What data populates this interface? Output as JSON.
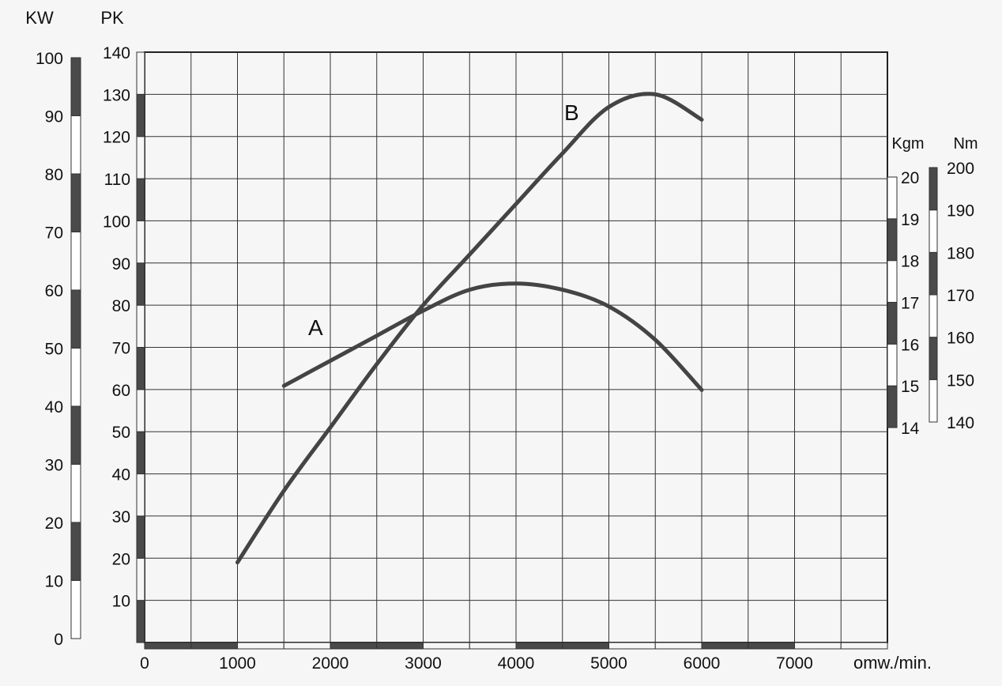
{
  "chart_data": {
    "type": "line",
    "x_axis": {
      "ticks": [
        "0",
        "1000",
        "2000",
        "3000",
        "4000",
        "5000",
        "6000",
        "7000"
      ],
      "unit_label": "omw./min.",
      "range": [
        0,
        8000
      ]
    },
    "axes": {
      "pk": {
        "label": "PK",
        "ticks": [
          "140",
          "130",
          "120",
          "110",
          "100",
          "90",
          "80",
          "70",
          "60",
          "50",
          "40",
          "30",
          "20",
          "10"
        ],
        "range": [
          0,
          140
        ]
      },
      "kw": {
        "label": "KW",
        "ticks": [
          "100",
          "90",
          "80",
          "70",
          "60",
          "50",
          "40",
          "30",
          "20",
          "10",
          "0"
        ],
        "range": [
          0,
          100
        ]
      },
      "kgm": {
        "label": "Kgm",
        "ticks": [
          "20",
          "19",
          "18",
          "17",
          "16",
          "15",
          "14"
        ],
        "range": [
          14,
          20
        ]
      },
      "nm": {
        "label": "Nm",
        "ticks": [
          "200",
          "190",
          "180",
          "170",
          "160",
          "150",
          "140"
        ],
        "range": [
          140,
          200
        ]
      }
    },
    "grid": true,
    "series": [
      {
        "name": "A",
        "axis": "kgm",
        "x": [
          1500,
          2000,
          2500,
          3000,
          3500,
          4000,
          4500,
          5000,
          5500,
          6000
        ],
        "y": [
          15.0,
          15.6,
          16.2,
          16.8,
          17.3,
          17.45,
          17.3,
          16.9,
          16.1,
          14.9
        ]
      },
      {
        "name": "B",
        "axis": "pk",
        "x": [
          1000,
          1500,
          2000,
          2500,
          3000,
          3500,
          4000,
          4500,
          5000,
          5500,
          6000
        ],
        "y": [
          19,
          36,
          51,
          66,
          80,
          92,
          104,
          116,
          127,
          130,
          124
        ]
      }
    ]
  }
}
